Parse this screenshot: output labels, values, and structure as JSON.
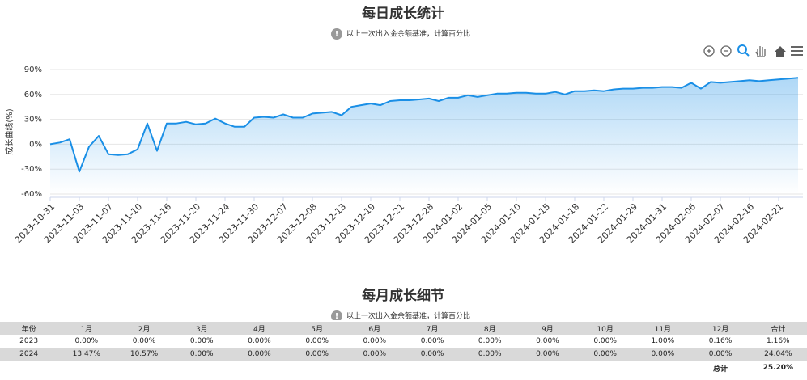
{
  "chart_data": {
    "type": "area",
    "title": "每日成长统计",
    "subtitle": "以上一次出入金余额基准，计算百分比",
    "y_label": "成长曲线(%)",
    "categories": [
      "2023-10-31",
      null,
      null,
      "2023-11-03",
      null,
      null,
      "2023-11-07",
      null,
      null,
      "2023-11-10",
      null,
      null,
      "2023-11-16",
      null,
      null,
      "2023-11-20",
      null,
      null,
      "2023-11-24",
      null,
      null,
      "2023-11-30",
      null,
      null,
      "2023-12-07",
      null,
      null,
      "2023-12-08",
      null,
      null,
      "2023-12-13",
      null,
      null,
      "2023-12-19",
      null,
      null,
      "2023-12-21",
      null,
      null,
      "2023-12-28",
      null,
      null,
      "2024-01-02",
      null,
      null,
      "2024-01-05",
      null,
      null,
      "2024-01-10",
      null,
      null,
      "2024-01-15",
      null,
      null,
      "2024-01-18",
      null,
      null,
      "2024-01-22",
      null,
      null,
      "2024-01-29",
      null,
      null,
      "2024-01-31",
      null,
      null,
      "2024-02-06",
      null,
      null,
      "2024-02-07",
      null,
      null,
      "2024-02-16",
      null,
      null,
      "2024-02-21",
      null,
      null
    ],
    "values": [
      0,
      2,
      6,
      -33,
      -3,
      10,
      -12,
      -13,
      -12,
      -6,
      25,
      -8,
      25,
      25,
      27,
      24,
      25,
      31,
      25,
      21,
      21,
      32,
      33,
      32,
      36,
      32,
      32,
      37,
      38,
      39,
      35,
      45,
      47,
      49,
      47,
      52,
      53,
      53,
      54,
      55,
      52,
      56,
      56,
      59,
      57,
      59,
      61,
      61,
      62,
      62,
      61,
      61,
      63,
      60,
      64,
      64,
      65,
      64,
      66,
      67,
      67,
      68,
      68,
      69,
      69,
      68,
      74,
      67,
      75,
      74,
      75,
      76,
      77,
      76,
      77,
      78,
      79,
      80
    ],
    "color": "#1a8fe6",
    "ylim": [
      -60,
      90
    ],
    "yticks": [
      {
        "value": -60,
        "label": "-60%"
      },
      {
        "value": -30,
        "label": "-30%"
      },
      {
        "value": 0,
        "label": "0%"
      },
      {
        "value": 30,
        "label": "30%"
      },
      {
        "value": 60,
        "label": "60%"
      },
      {
        "value": 90,
        "label": "90%"
      }
    ],
    "grid": true
  },
  "table": {
    "title": "每月成长细节",
    "subtitle": "以上一次出入金余额基准，计算百分比",
    "header": [
      "年份",
      "1月",
      "2月",
      "3月",
      "4月",
      "5月",
      "6月",
      "7月",
      "8月",
      "9月",
      "10月",
      "11月",
      "12月",
      "合计"
    ],
    "rows": [
      [
        "2023",
        "0.00%",
        "0.00%",
        "0.00%",
        "0.00%",
        "0.00%",
        "0.00%",
        "0.00%",
        "0.00%",
        "0.00%",
        "0.00%",
        "1.00%",
        "0.16%",
        "1.16%"
      ],
      [
        "2024",
        "13.47%",
        "10.57%",
        "0.00%",
        "0.00%",
        "0.00%",
        "0.00%",
        "0.00%",
        "0.00%",
        "0.00%",
        "0.00%",
        "0.00%",
        "0.00%",
        "24.04%"
      ]
    ],
    "footer": [
      "总计",
      "25.20%"
    ]
  }
}
